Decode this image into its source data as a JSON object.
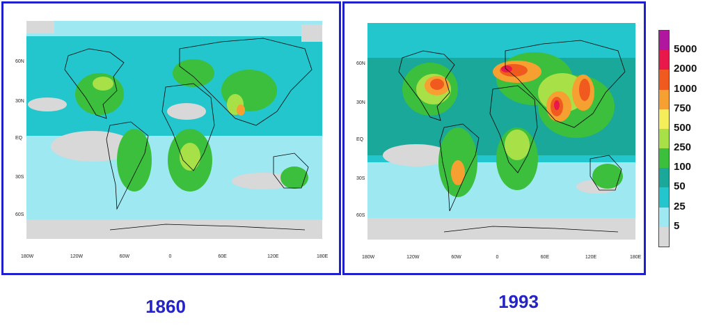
{
  "panels": [
    {
      "year": "1860",
      "x_ticks": [
        "180W",
        "120W",
        "60W",
        "0",
        "60E",
        "120E",
        "180E"
      ],
      "y_ticks": [
        "60N",
        "30N",
        "EQ",
        "30S",
        "60S"
      ],
      "intensity": "low"
    },
    {
      "year": "1993",
      "x_ticks": [
        "180W",
        "120W",
        "60W",
        "0",
        "60E",
        "120E",
        "180E"
      ],
      "y_ticks": [
        "60N",
        "30N",
        "EQ",
        "30S",
        "60S"
      ],
      "intensity": "high"
    }
  ],
  "legend": {
    "levels": [
      "5000",
      "2000",
      "1000",
      "750",
      "500",
      "250",
      "100",
      "50",
      "25",
      "5"
    ],
    "colors": [
      "#b0169e",
      "#e8184a",
      "#f05a1e",
      "#f6a032",
      "#f4ee5a",
      "#a8e048",
      "#3cbf3c",
      "#1aa89a",
      "#22c6cc",
      "#9ee8f2",
      "#d8d8d8"
    ]
  },
  "colors": {
    "frame": "#1f1fd0",
    "year_label": "#2323c8",
    "no_data": "#d8d8d8"
  }
}
